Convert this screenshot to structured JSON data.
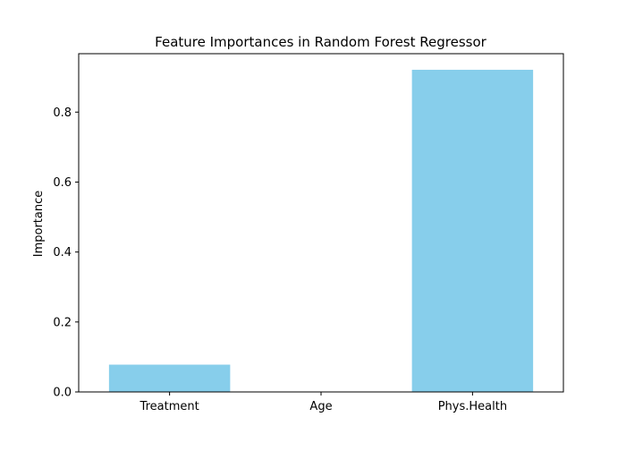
{
  "chart_data": {
    "type": "bar",
    "title": "Feature Importances in Random Forest Regressor",
    "xlabel": "",
    "ylabel": "Importance",
    "categories": [
      "Treatment",
      "Age",
      "Phys.Health"
    ],
    "values": [
      0.078,
      0.001,
      0.921
    ],
    "ylim": [
      0,
      0.967
    ],
    "yticks": [
      0.0,
      0.2,
      0.4,
      0.6,
      0.8
    ],
    "ytick_labels": [
      "0.0",
      "0.2",
      "0.4",
      "0.6",
      "0.8"
    ],
    "bar_color": "#87CEEB",
    "grid": false,
    "legend": "none"
  }
}
